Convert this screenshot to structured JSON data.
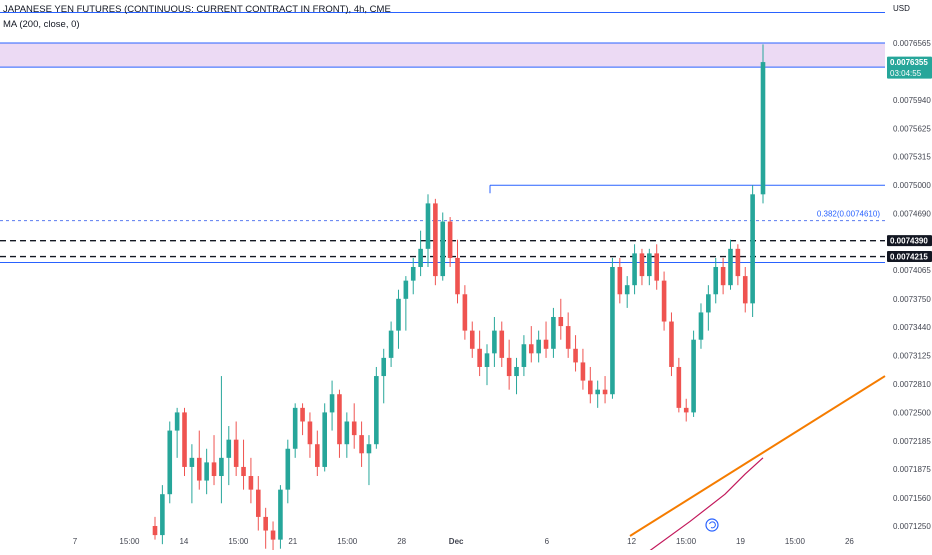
{
  "header": {
    "title": "JAPANESE YEN FUTURES (CONTINUOUS: CURRENT CONTRACT IN FRONT), 4h, CME",
    "indicator": "MA (200, close, 0)"
  },
  "currency": "USD",
  "colors": {
    "up": "#26a69a",
    "down": "#ef5350",
    "blue_line": "#2962ff",
    "orange_line": "#f57c00",
    "ma_line": "#c2185b",
    "zone_fill": "#e9d4f2",
    "price_tag": "#26a69a",
    "black_tag": "#131722"
  },
  "icons": {
    "reset": "refresh-icon"
  },
  "chart_data": {
    "type": "candlestick",
    "title": "JAPANESE YEN FUTURES (CONTINUOUS: CURRENT CONTRACT IN FRONT), 4h, CME",
    "ylabel": "USD",
    "ylim": [
      0.00708,
      0.00769
    ],
    "grid": false,
    "y_ticks": [
      "0.0076565",
      "0.0076355",
      "0.0075940",
      "0.0075625",
      "0.0075315",
      "0.0075000",
      "0.0074690",
      "0.0074390",
      "0.0074215",
      "0.0074065",
      "0.0073750",
      "0.0073440",
      "0.0073125",
      "0.0072810",
      "0.0072500",
      "0.0072185",
      "0.0071875",
      "0.0071560",
      "0.0071250"
    ],
    "y_tick_values": [
      0.0076565,
      0.0076355,
      0.007594,
      0.0075625,
      0.0075315,
      0.0075,
      0.007469,
      0.007439,
      0.0074215,
      0.0074065,
      0.007375,
      0.007344,
      0.0073125,
      0.007281,
      0.00725,
      0.0072185,
      0.0071875,
      0.007156,
      0.007125
    ],
    "x_ticks": [
      {
        "label": "7",
        "i": 0
      },
      {
        "label": "15:00",
        "i": 9
      },
      {
        "label": "14",
        "i": 18
      },
      {
        "label": "15:00",
        "i": 27
      },
      {
        "label": "21",
        "i": 36
      },
      {
        "label": "15:00",
        "i": 45
      },
      {
        "label": "28",
        "i": 54
      },
      {
        "label": "Dec",
        "i": 63
      },
      {
        "label": "6",
        "i": 78
      },
      {
        "label": "12",
        "i": 92
      },
      {
        "label": "15:00",
        "i": 101
      },
      {
        "label": "19",
        "i": 110
      },
      {
        "label": "15:00",
        "i": 119
      },
      {
        "label": "26",
        "i": 128
      }
    ],
    "candles": [
      [
        0.007125,
        0.007135,
        0.00711,
        0.007115
      ],
      [
        0.007115,
        0.00717,
        0.007105,
        0.00716
      ],
      [
        0.00716,
        0.00724,
        0.00715,
        0.00723
      ],
      [
        0.00723,
        0.007255,
        0.0072,
        0.00725
      ],
      [
        0.00725,
        0.007255,
        0.00718,
        0.00719
      ],
      [
        0.00719,
        0.007215,
        0.00715,
        0.0072
      ],
      [
        0.0072,
        0.00723,
        0.007165,
        0.007175
      ],
      [
        0.007175,
        0.00721,
        0.00716,
        0.007195
      ],
      [
        0.007195,
        0.007225,
        0.00717,
        0.00718
      ],
      [
        0.00718,
        0.00729,
        0.00715,
        0.0072
      ],
      [
        0.0072,
        0.007235,
        0.00717,
        0.00722
      ],
      [
        0.00722,
        0.00724,
        0.00718,
        0.00719
      ],
      [
        0.00719,
        0.00722,
        0.007165,
        0.00718
      ],
      [
        0.00718,
        0.0072,
        0.00715,
        0.007165
      ],
      [
        0.007165,
        0.00718,
        0.00712,
        0.007135
      ],
      [
        0.007135,
        0.007145,
        0.0071,
        0.00712
      ],
      [
        0.00712,
        0.00713,
        0.007095,
        0.00711
      ],
      [
        0.00711,
        0.00717,
        0.0071,
        0.007165
      ],
      [
        0.007165,
        0.00722,
        0.00715,
        0.00721
      ],
      [
        0.00721,
        0.00726,
        0.0072,
        0.007255
      ],
      [
        0.007255,
        0.00726,
        0.007225,
        0.00724
      ],
      [
        0.00724,
        0.00725,
        0.0072,
        0.007215
      ],
      [
        0.007215,
        0.00723,
        0.00718,
        0.00719
      ],
      [
        0.00719,
        0.00726,
        0.007185,
        0.00725
      ],
      [
        0.00725,
        0.007285,
        0.00723,
        0.00727
      ],
      [
        0.00727,
        0.007275,
        0.0072,
        0.007215
      ],
      [
        0.007215,
        0.00725,
        0.0072,
        0.00724
      ],
      [
        0.00724,
        0.00726,
        0.00721,
        0.007225
      ],
      [
        0.007225,
        0.00724,
        0.00719,
        0.007205
      ],
      [
        0.007205,
        0.007225,
        0.00717,
        0.007215
      ],
      [
        0.007215,
        0.0073,
        0.00721,
        0.00729
      ],
      [
        0.00729,
        0.00732,
        0.00726,
        0.00731
      ],
      [
        0.00731,
        0.00735,
        0.0073,
        0.00734
      ],
      [
        0.00734,
        0.007385,
        0.00732,
        0.007375
      ],
      [
        0.007375,
        0.0074,
        0.00734,
        0.007395
      ],
      [
        0.007395,
        0.00742,
        0.00738,
        0.00741
      ],
      [
        0.00741,
        0.00745,
        0.0074,
        0.00743
      ],
      [
        0.00743,
        0.00749,
        0.00741,
        0.00748
      ],
      [
        0.00748,
        0.007485,
        0.00739,
        0.0074
      ],
      [
        0.0074,
        0.00747,
        0.007395,
        0.00746
      ],
      [
        0.00746,
        0.007465,
        0.00741,
        0.00742
      ],
      [
        0.00742,
        0.00744,
        0.00737,
        0.00738
      ],
      [
        0.00738,
        0.00739,
        0.00733,
        0.00734
      ],
      [
        0.00734,
        0.00735,
        0.00731,
        0.00732
      ],
      [
        0.00732,
        0.00734,
        0.00729,
        0.0073
      ],
      [
        0.0073,
        0.007325,
        0.00728,
        0.007315
      ],
      [
        0.007315,
        0.007355,
        0.0073,
        0.00734
      ],
      [
        0.00734,
        0.00735,
        0.0073,
        0.00731
      ],
      [
        0.00731,
        0.00733,
        0.007275,
        0.00729
      ],
      [
        0.00729,
        0.00731,
        0.00727,
        0.0073
      ],
      [
        0.0073,
        0.007335,
        0.00729,
        0.007325
      ],
      [
        0.007325,
        0.007345,
        0.007305,
        0.007315
      ],
      [
        0.007315,
        0.00734,
        0.007305,
        0.00733
      ],
      [
        0.00733,
        0.00735,
        0.00731,
        0.00732
      ],
      [
        0.00732,
        0.007365,
        0.00731,
        0.007355
      ],
      [
        0.007355,
        0.007375,
        0.00733,
        0.007345
      ],
      [
        0.007345,
        0.00736,
        0.00731,
        0.00732
      ],
      [
        0.00732,
        0.007335,
        0.007295,
        0.007305
      ],
      [
        0.007305,
        0.00732,
        0.007275,
        0.007285
      ],
      [
        0.007285,
        0.0073,
        0.00726,
        0.00727
      ],
      [
        0.00727,
        0.007285,
        0.007255,
        0.007275
      ],
      [
        0.007275,
        0.00729,
        0.00726,
        0.00727
      ],
      [
        0.00727,
        0.00742,
        0.007265,
        0.00741
      ],
      [
        0.00741,
        0.00742,
        0.00737,
        0.00738
      ],
      [
        0.00738,
        0.0074,
        0.007365,
        0.00739
      ],
      [
        0.00739,
        0.007435,
        0.00738,
        0.007425
      ],
      [
        0.007425,
        0.00743,
        0.00739,
        0.0074
      ],
      [
        0.0074,
        0.00743,
        0.00739,
        0.007425
      ],
      [
        0.007425,
        0.007435,
        0.007385,
        0.007395
      ],
      [
        0.007395,
        0.007405,
        0.00734,
        0.00735
      ],
      [
        0.00735,
        0.00736,
        0.00729,
        0.0073
      ],
      [
        0.0073,
        0.00731,
        0.00725,
        0.007255
      ],
      [
        0.007255,
        0.007265,
        0.00724,
        0.00725
      ],
      [
        0.00725,
        0.00734,
        0.007245,
        0.00733
      ],
      [
        0.00733,
        0.00737,
        0.00732,
        0.00736
      ],
      [
        0.00736,
        0.00739,
        0.00734,
        0.00738
      ],
      [
        0.00738,
        0.00742,
        0.00737,
        0.00741
      ],
      [
        0.00741,
        0.00742,
        0.00738,
        0.00739
      ],
      [
        0.00739,
        0.00744,
        0.007385,
        0.00743
      ],
      [
        0.00743,
        0.007435,
        0.00739,
        0.0074
      ],
      [
        0.0074,
        0.00741,
        0.00736,
        0.00737
      ],
      [
        0.00737,
        0.0075,
        0.007355,
        0.00749
      ]
    ],
    "last_candle": [
      0.00749,
      0.007655,
      0.00748,
      0.0076355
    ],
    "current_price": {
      "value": "0.0076355",
      "countdown": "03:04:55"
    },
    "lines": [
      {
        "name": "resistance-top",
        "value": 0.00769,
        "style": "solid",
        "color": "blue"
      },
      {
        "name": "zone-top",
        "value": 0.0076565,
        "style": "solid",
        "color": "blue"
      },
      {
        "name": "zone-bottom",
        "value": 0.00763,
        "style": "solid",
        "color": "blue"
      },
      {
        "name": "level-0.0075",
        "value": 0.0075,
        "style": "solid",
        "color": "blue"
      },
      {
        "name": "fib-0.382",
        "value": 0.007461,
        "style": "dotted",
        "color": "blue",
        "label": "0.382(0.0074610)"
      },
      {
        "name": "dashed-0.0074390",
        "value": 0.007439,
        "style": "dashed",
        "color": "black",
        "tag": "0.0074390"
      },
      {
        "name": "dashed-0.0074215",
        "value": 0.0074215,
        "style": "dashed",
        "color": "black",
        "tag": "0.0074215"
      },
      {
        "name": "level-0.0074150",
        "value": 0.007415,
        "style": "solid",
        "color": "blue"
      }
    ],
    "zone": {
      "top": 0.0076565,
      "bottom": 0.00763
    },
    "trendline": {
      "from": {
        "i": 72,
        "v": 0.007114
      },
      "to": {
        "i": 123,
        "v": 0.00729
      }
    },
    "ma": [
      {
        "i": 98,
        "v": 0.007098
      },
      {
        "i": 104,
        "v": 0.00713
      },
      {
        "i": 110,
        "v": 0.00716
      },
      {
        "i": 114,
        "v": 0.007185
      },
      {
        "i": 117,
        "v": 0.0072
      }
    ]
  }
}
